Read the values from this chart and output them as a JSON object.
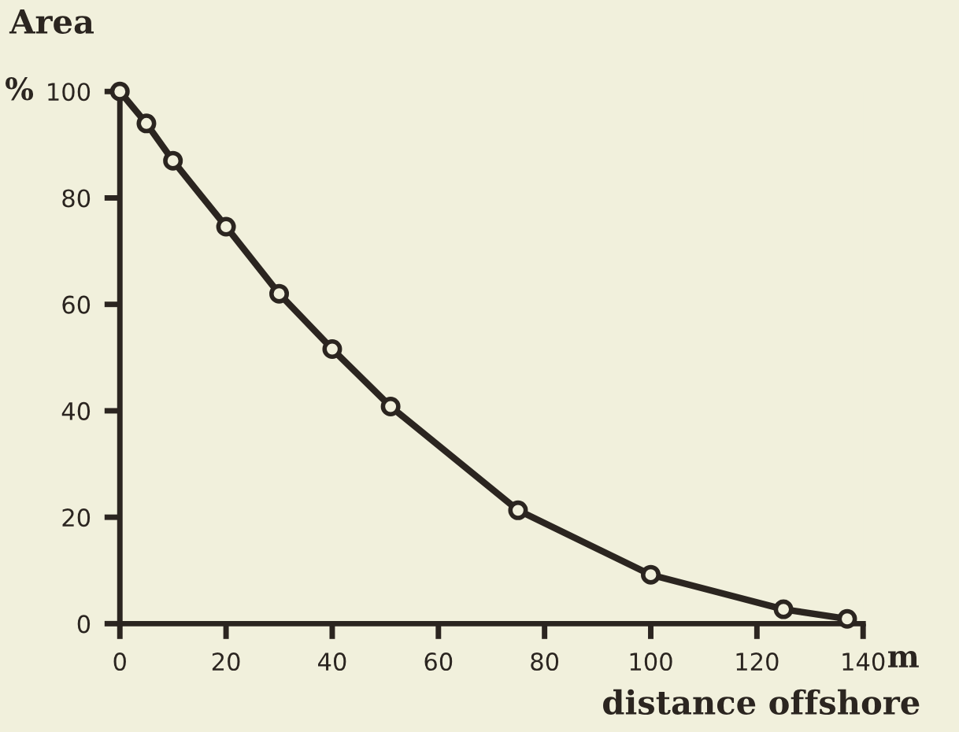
{
  "chart_data": {
    "type": "line",
    "ylabel": "Area",
    "xlabel": "distance offshore",
    "annotations": [
      "%",
      "m"
    ],
    "x": [
      0,
      5,
      10,
      20,
      30,
      40,
      51,
      75,
      100,
      125,
      137
    ],
    "series": [
      {
        "color": "#2b2520",
        "values": [
          100,
          94,
          87,
          74.6,
          62,
          51.6,
          40.8,
          21.3,
          9.2,
          2.7,
          0.9
        ]
      }
    ],
    "xlim": [
      0,
      140
    ],
    "xticks": [
      0,
      20,
      40,
      60,
      80,
      100,
      120,
      140
    ],
    "ylim": [
      0,
      100
    ],
    "yticks": [
      0,
      20,
      40,
      60,
      80,
      100
    ],
    "marker": "circle",
    "line_style": "solid",
    "grid": false,
    "legend": false
  }
}
